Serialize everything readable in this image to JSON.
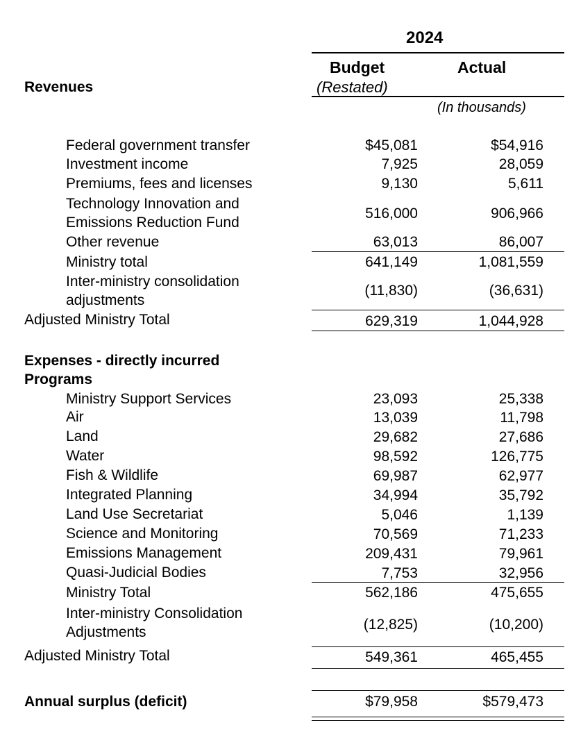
{
  "header": {
    "year": "2024",
    "budget_label": "Budget",
    "budget_sublabel": "(Restated)",
    "actual_label": "Actual",
    "units_note": "(In thousands)"
  },
  "revenues": {
    "heading": "Revenues",
    "rows": [
      {
        "label": "Federal government transfer",
        "budget": "$45,081",
        "actual": "$54,916"
      },
      {
        "label": "Investment income",
        "budget": "7,925",
        "actual": "28,059"
      },
      {
        "label": "Premiums, fees and licenses",
        "budget": "9,130",
        "actual": "5,611"
      },
      {
        "label_line1": "Technology Innovation and",
        "label_line2": "Emissions Reduction Fund",
        "budget": "516,000",
        "actual": "906,966"
      },
      {
        "label": "Other revenue",
        "budget": "63,013",
        "actual": "86,007"
      }
    ],
    "ministry_total": {
      "label": "Ministry total",
      "budget": "641,149",
      "actual": "1,081,559"
    },
    "consolidation": {
      "label_line1": "Inter-ministry consolidation",
      "label_line2": "adjustments",
      "budget": "(11,830)",
      "actual": "(36,631)"
    },
    "adjusted_total": {
      "label": "Adjusted Ministry Total",
      "budget": "629,319",
      "actual": "1,044,928"
    }
  },
  "expenses": {
    "heading_line1": "Expenses - directly incurred",
    "heading_line2": "Programs",
    "rows": [
      {
        "label": "Ministry Support Services",
        "budget": "23,093",
        "actual": "25,338"
      },
      {
        "label": "Air",
        "budget": "13,039",
        "actual": "11,798"
      },
      {
        "label": "Land",
        "budget": "29,682",
        "actual": "27,686"
      },
      {
        "label": "Water",
        "budget": "98,592",
        "actual": "126,775"
      },
      {
        "label": "Fish & Wildlife",
        "budget": "69,987",
        "actual": "62,977"
      },
      {
        "label": "Integrated Planning",
        "budget": "34,994",
        "actual": "35,792"
      },
      {
        "label": "Land Use Secretariat",
        "budget": "5,046",
        "actual": "1,139"
      },
      {
        "label": "Science and Monitoring",
        "budget": "70,569",
        "actual": "71,233"
      },
      {
        "label": "Emissions Management",
        "budget": "209,431",
        "actual": "79,961"
      },
      {
        "label": "Quasi-Judicial Bodies",
        "budget": "7,753",
        "actual": "32,956"
      }
    ],
    "ministry_total": {
      "label": "Ministry Total",
      "budget": "562,186",
      "actual": "475,655"
    },
    "consolidation": {
      "label_line1": "Inter-ministry Consolidation",
      "label_line2": "Adjustments",
      "budget": "(12,825)",
      "actual": "(10,200)"
    },
    "adjusted_total": {
      "label": "Adjusted Ministry Total",
      "budget": "549,361",
      "actual": "465,455"
    }
  },
  "surplus": {
    "label": "Annual surplus (deficit)",
    "budget": "$79,958",
    "actual": "$579,473"
  }
}
